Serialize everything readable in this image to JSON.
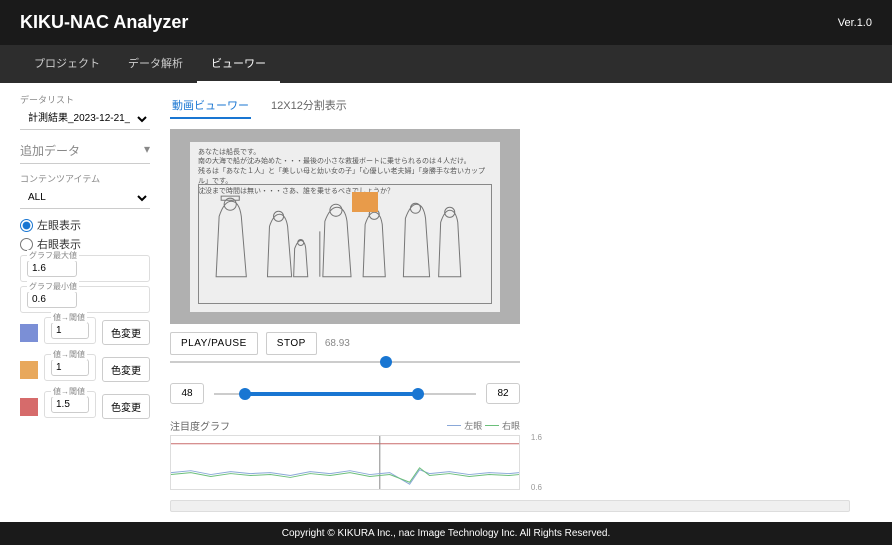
{
  "header": {
    "title": "KIKU-NAC Analyzer",
    "version": "Ver.1.0"
  },
  "nav": {
    "tab1": "プロジェクト",
    "tab2": "データ解析",
    "tab3": "ビューワー"
  },
  "sidebar": {
    "datalist_label": "データリスト",
    "datalist_value": "計測結果_2023-12-21_1...",
    "add_data": "追加データ",
    "content_item_label": "コンテンツアイテム",
    "content_item_value": "ALL",
    "left_eye": "左眼表示",
    "right_eye": "右眼表示",
    "graph_max_label": "グラフ最大値",
    "graph_max_value": "1.6",
    "graph_min_label": "グラフ最小値",
    "graph_min_value": "0.6",
    "threshold1_label": "値→閾値",
    "threshold1_value": "1",
    "threshold1_color": "#7b8fd6",
    "threshold2_label": "値→閾値",
    "threshold2_value": "1",
    "threshold2_color": "#e8a85c",
    "threshold3_label": "値→閾値",
    "threshold3_value": "1.5",
    "threshold3_color": "#d66b6b",
    "color_change": "色変更"
  },
  "subtabs": {
    "video": "動画ビューワー",
    "grid": "12X12分割表示"
  },
  "scene": {
    "line1": "あなたは船長です。",
    "line2": "南の大海で船が沈み始めた・・・最後の小さな救援ボートに乗せられるのは４人だけ。",
    "line3": "残るは「あなた１人」と「美しい母と幼い女の子」「心優しい老夫婦」「身勝手な若いカップル」です。",
    "line4": "沈没まで時間は無い・・・さあ、誰を乗せるべきでしょうか？",
    "highlight_color": "#e89b4a"
  },
  "controls": {
    "play_pause": "PLAY/PAUSE",
    "stop": "STOP",
    "current_time": "68.93",
    "slider_pos_pct": 60,
    "range_start": "48",
    "range_end": "82",
    "range_start_pct": 12,
    "range_end_pct": 78
  },
  "graph": {
    "title": "注目度グラフ",
    "legend_left": "左眼",
    "legend_right": "右眼",
    "y_max": "1.6",
    "y_min": "0.6",
    "line_left_color": "#8aa8d8",
    "line_right_color": "#6bbf7a",
    "ref_line_color": "#c96b6b"
  },
  "footer": {
    "copyright": "Copyright © KIKURA Inc., nac Image Technology Inc. All Rights Reserved."
  }
}
